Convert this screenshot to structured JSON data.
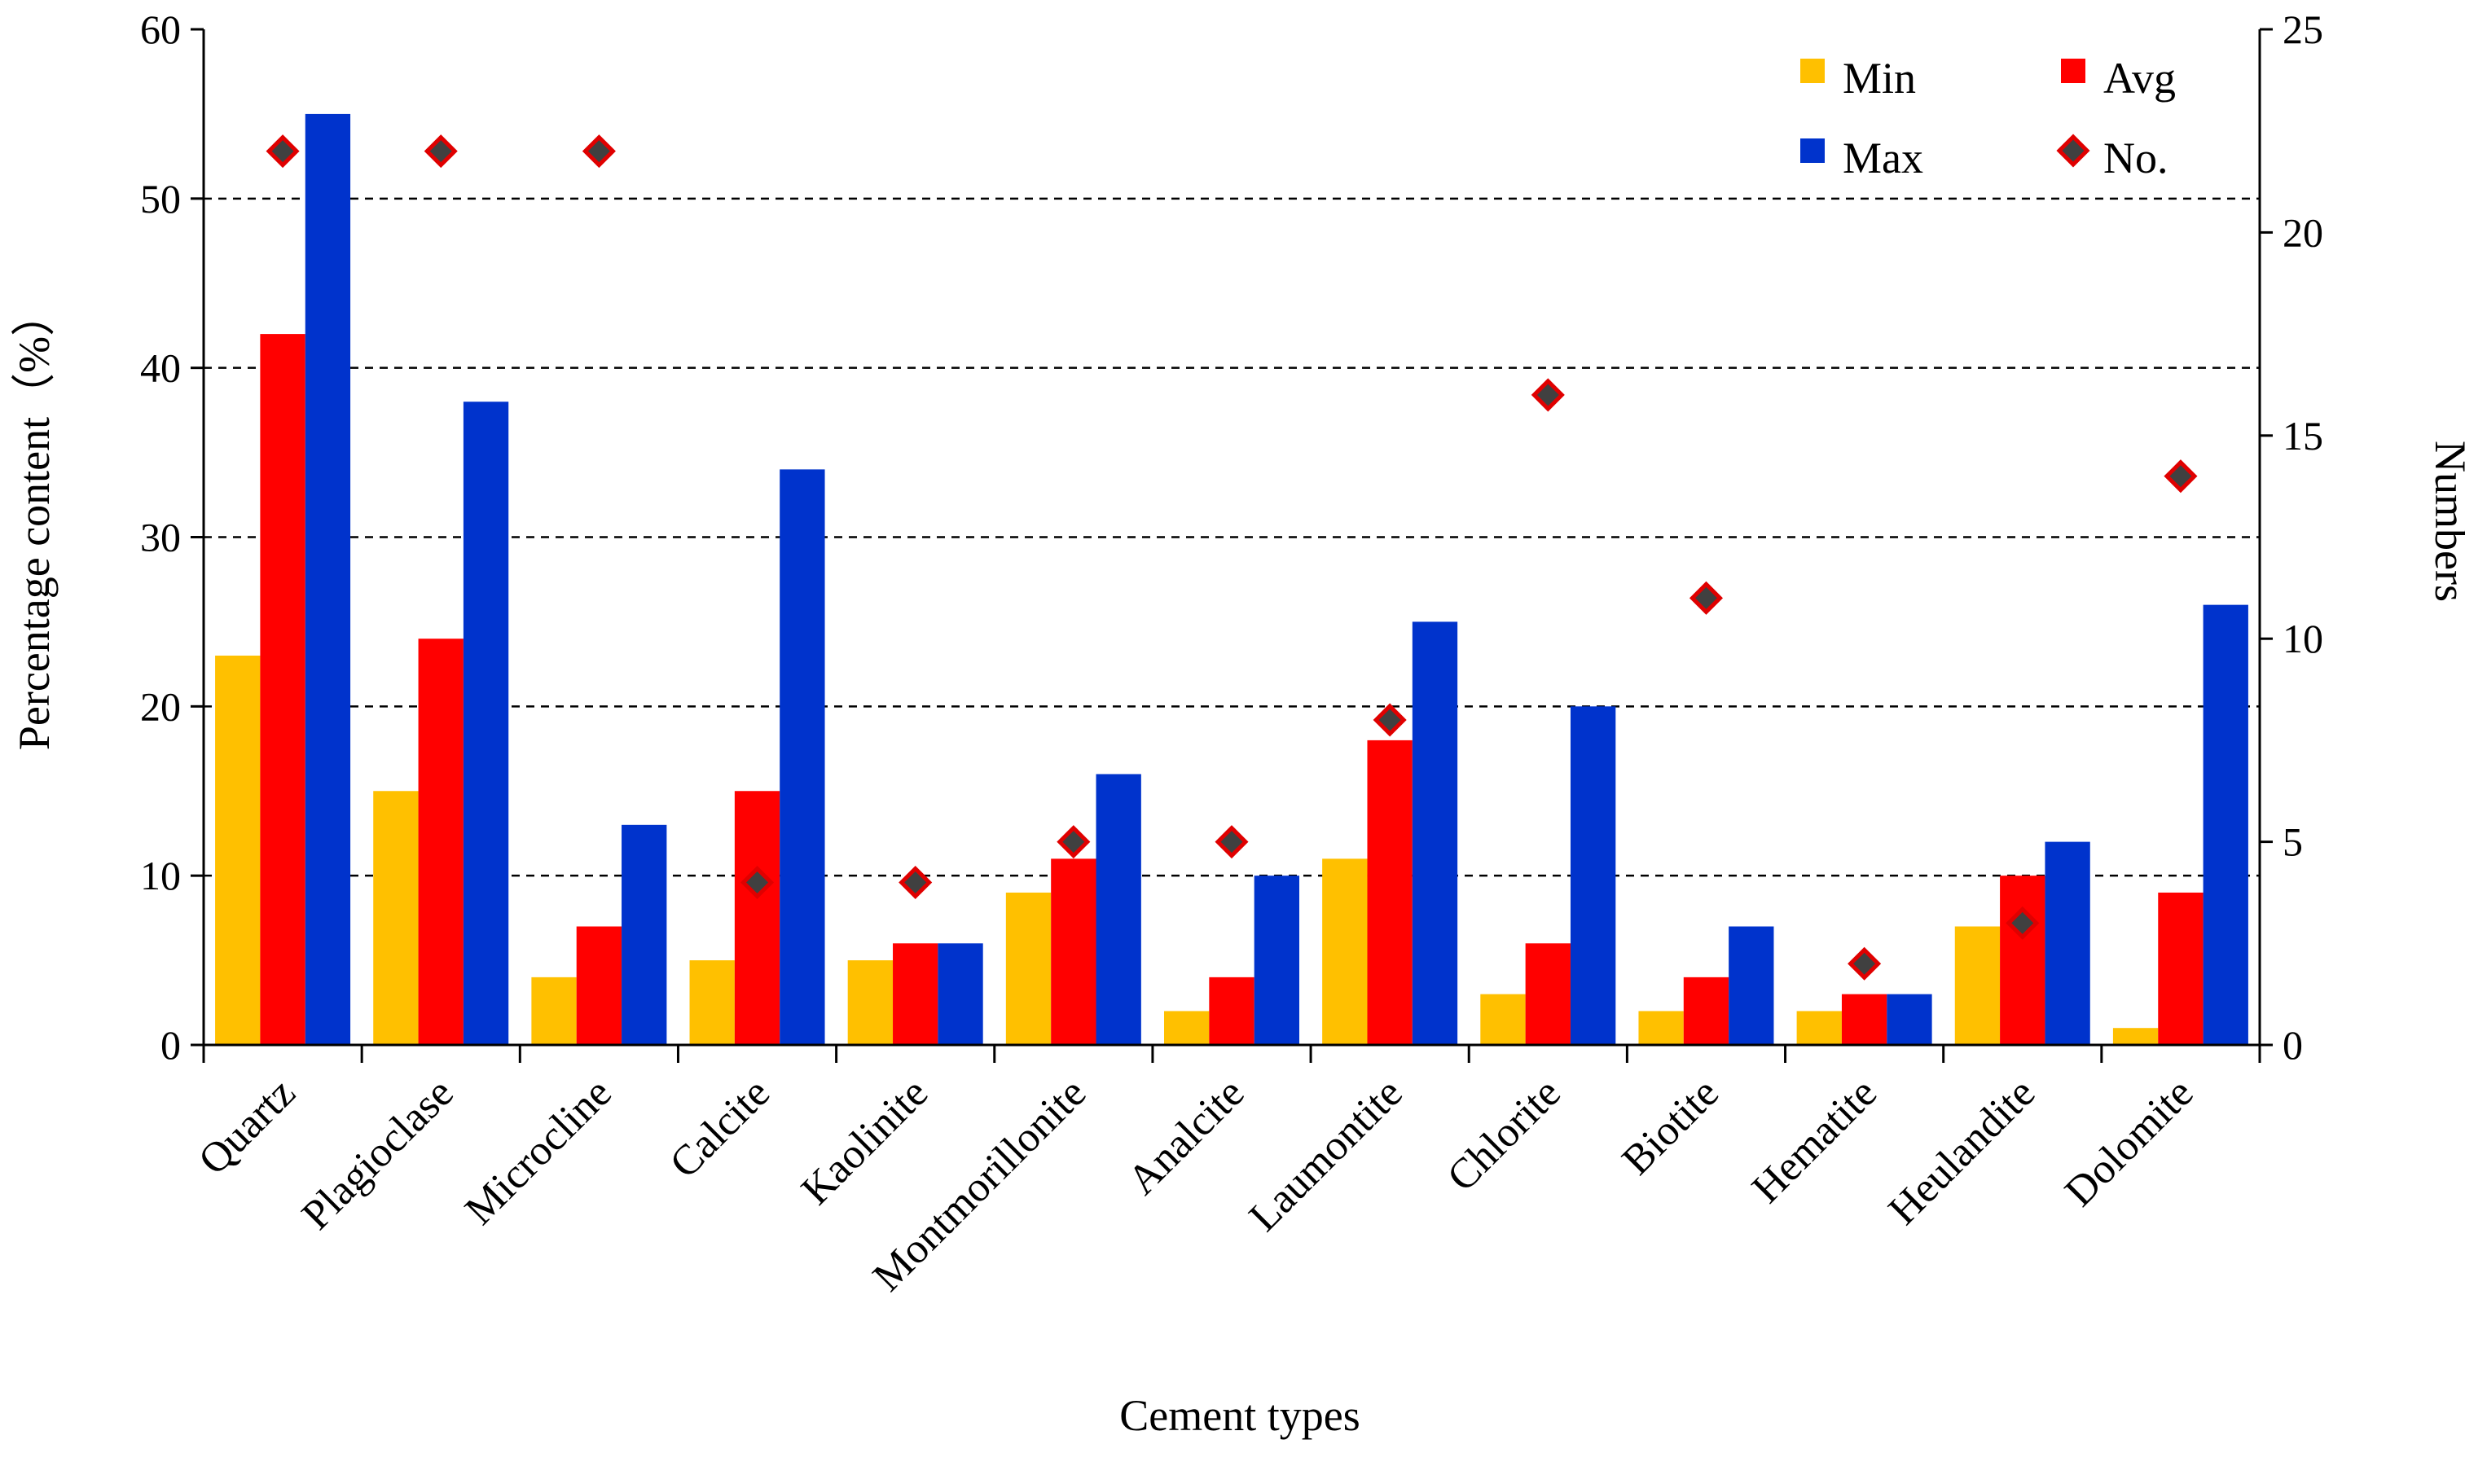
{
  "chart_data": {
    "type": "bar",
    "title": "",
    "xlabel": "Cement types",
    "ylabel": "Percentage content（%）",
    "y2label": "Numbers",
    "ylim": [
      0,
      60
    ],
    "y2lim": [
      0,
      25
    ],
    "yticks": [
      "0",
      "10",
      "20",
      "30",
      "40",
      "50",
      "60"
    ],
    "y2ticks": [
      "0",
      "5",
      "10",
      "15",
      "20",
      "25"
    ],
    "grid": "horizontal dashed",
    "legend_position": "top-right",
    "categories": [
      "Quartz",
      "Plagioclase",
      "Microcline",
      "Calcite",
      "Kaolinite",
      "Montmorillonite",
      "Analcite",
      "Laumontite",
      "Chlorite",
      "Biotite",
      "Hematite",
      "Heulandite",
      "Dolomite"
    ],
    "series": [
      {
        "name": "Min",
        "kind": "bar",
        "axis": "left",
        "color": "#FFC000",
        "values": [
          23,
          15,
          4,
          5,
          5,
          9,
          2,
          11,
          3,
          2,
          2,
          7,
          1
        ]
      },
      {
        "name": "Avg",
        "kind": "bar",
        "axis": "left",
        "color": "#FF0000",
        "values": [
          42,
          24,
          7,
          15,
          6,
          11,
          4,
          18,
          6,
          4,
          3,
          10,
          9
        ]
      },
      {
        "name": "Max",
        "kind": "bar",
        "axis": "left",
        "color": "#0033CC",
        "values": [
          55,
          38,
          13,
          34,
          6,
          16,
          10,
          25,
          20,
          7,
          3,
          12,
          26
        ]
      },
      {
        "name": "No.",
        "kind": "scatter",
        "axis": "right",
        "color": "#404040",
        "edge_color": "#E00000",
        "values": [
          22,
          22,
          22,
          4,
          4,
          5,
          5,
          8,
          16,
          11,
          2,
          3,
          14
        ]
      }
    ]
  }
}
